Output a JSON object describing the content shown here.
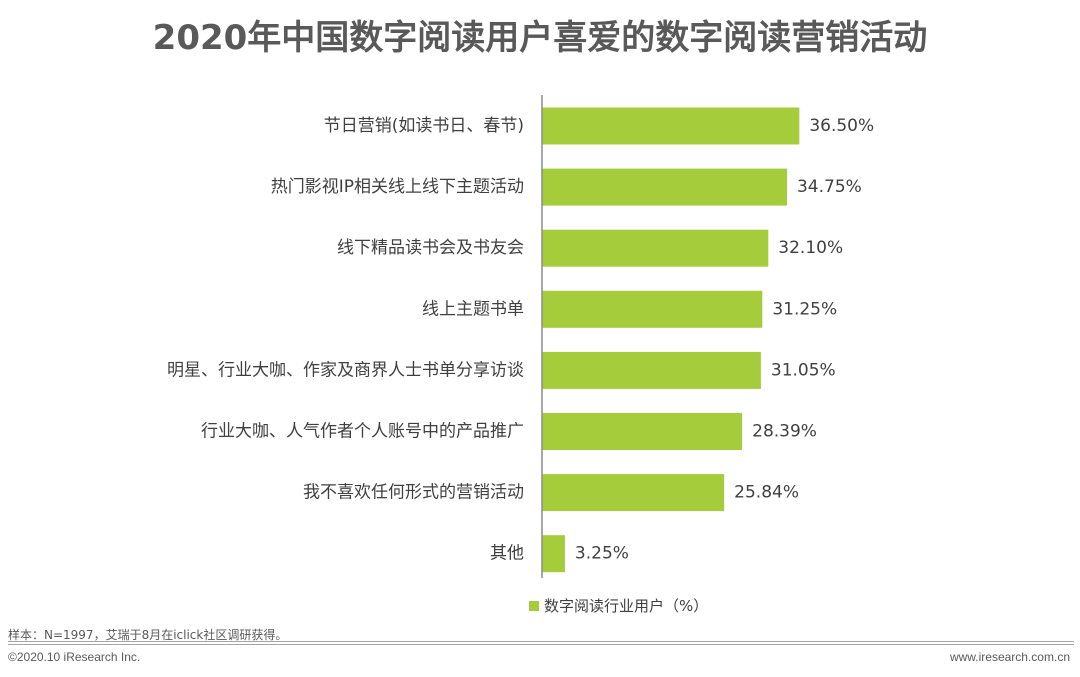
{
  "title": "2020年中国数字阅读用户喜爱的数字阅读营销活动",
  "footer": {
    "note": "样本：N=1997，艾瑞于8月在iclick社区调研获得。",
    "copyright": "©2020.10 iResearch Inc.",
    "website": "www.iresearch.com.cn"
  },
  "colors": {
    "bar": "#a5cc3a",
    "axis": "#8c8c8c",
    "text": "#404040"
  },
  "chart_data": {
    "type": "bar",
    "orientation": "horizontal",
    "title": "2020年中国数字阅读用户喜爱的数字阅读营销活动",
    "categories": [
      "节日营销(如读书日、春节)",
      "热门影视IP相关线上线下主题活动",
      "线下精品读书会及书友会",
      "线上主题书单",
      "明星、行业大咖、作家及商界人士书单分享访谈",
      "行业大咖、人气作者个人账号中的产品推广",
      "我不喜欢任何形式的营销活动",
      "其他"
    ],
    "series": [
      {
        "name": "数字阅读行业用户（%）",
        "values": [
          36.5,
          34.75,
          32.1,
          31.25,
          31.05,
          28.39,
          25.84,
          3.25
        ]
      }
    ],
    "value_labels": [
      "36.50%",
      "34.75%",
      "32.10%",
      "31.25%",
      "31.05%",
      "28.39%",
      "25.84%",
      "3.25%"
    ],
    "xlim": [
      0,
      40
    ],
    "grid": false,
    "legend_position": "bottom"
  }
}
